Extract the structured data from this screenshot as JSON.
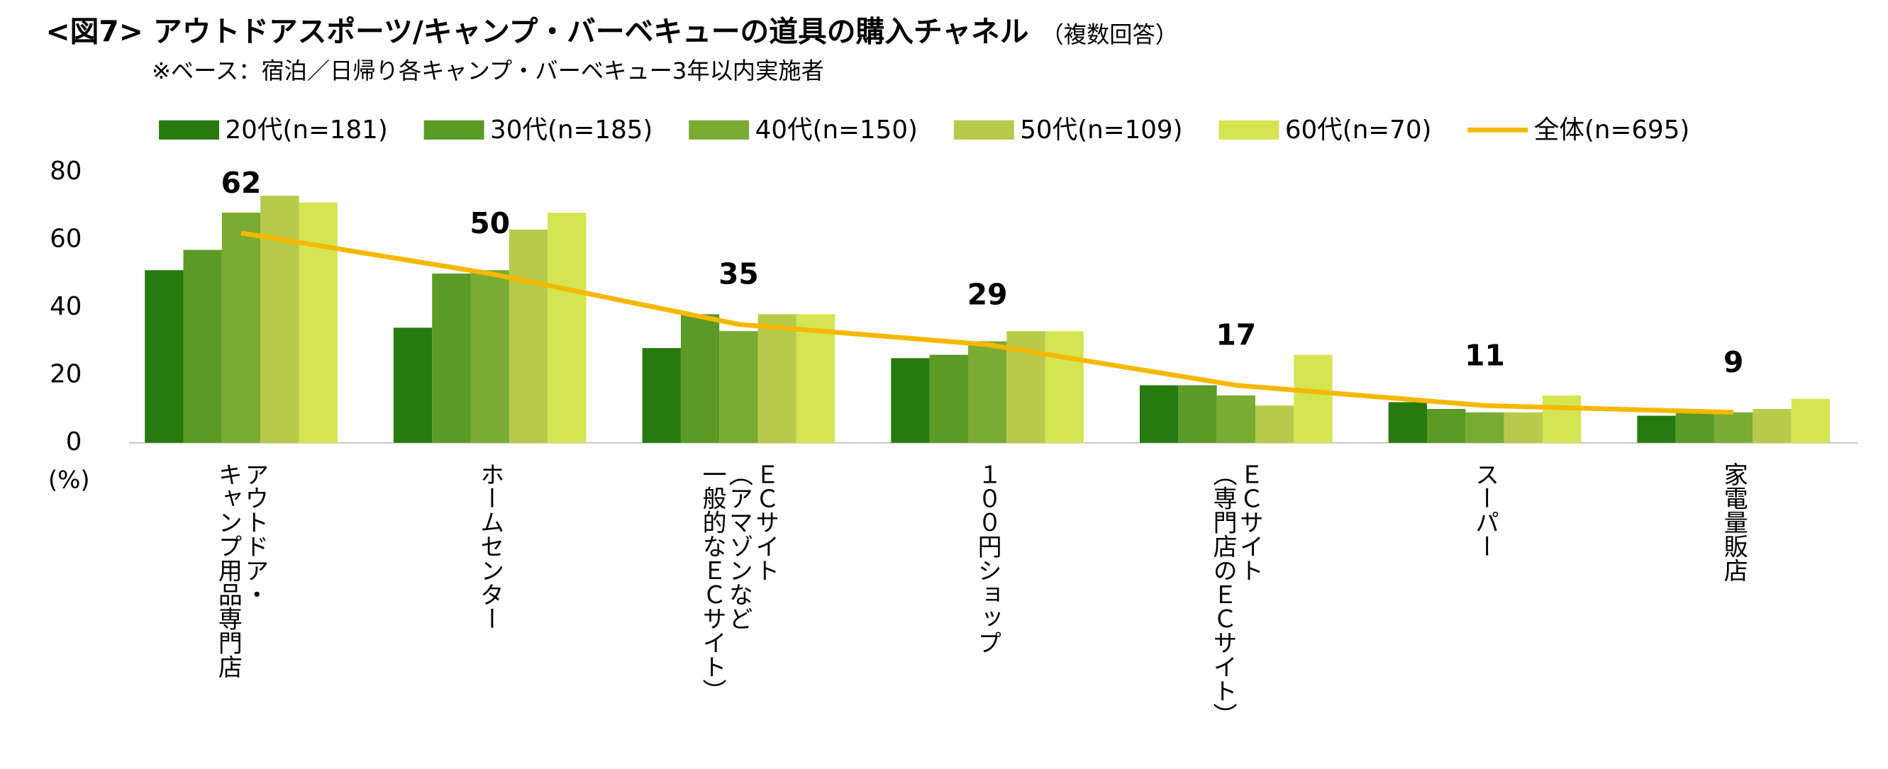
{
  "chart_data": {
    "type": "bar",
    "title": "<図7> アウトドアスポーツ/キャンプ・バーベキューの道具の購入チャネル",
    "title_note": "（複数回答）",
    "subtitle": "※ベース：宿泊／日帰り各キャンプ・バーベキュー3年以内実施者",
    "y_unit": "(%)",
    "categories": [
      [
        "アウトドア・",
        "キャンプ用品専門店"
      ],
      [
        "ホームセンター"
      ],
      [
        "ＥＣサイト",
        "（アマゾンなど",
        "一般的なＥＣサイト）"
      ],
      [
        "１００円ショップ"
      ],
      [
        "ＥＣサイト",
        "（専門店のＥＣサイト）"
      ],
      [
        "スーパー"
      ],
      [
        "家電量販店"
      ]
    ],
    "series": [
      {
        "name": "20代(n=181)",
        "color": "#267a0e",
        "values": [
          51,
          34,
          28,
          25,
          17,
          12,
          8
        ]
      },
      {
        "name": "30代(n=185)",
        "color": "#5a9a25",
        "values": [
          57,
          50,
          38,
          26,
          17,
          10,
          9
        ]
      },
      {
        "name": "40代(n=150)",
        "color": "#7aab33",
        "values": [
          68,
          51,
          33,
          30,
          14,
          9,
          9
        ]
      },
      {
        "name": "50代(n=109)",
        "color": "#b8ca4a",
        "values": [
          73,
          63,
          38,
          33,
          11,
          9,
          10
        ]
      },
      {
        "name": "60代(n=70)",
        "color": "#d5e552",
        "values": [
          71,
          68,
          38,
          33,
          26,
          14,
          13
        ]
      },
      {
        "name": "全体(n=695)",
        "color": "#f5b800",
        "type": "line",
        "values": [
          62,
          50,
          35,
          29,
          17,
          11,
          9
        ]
      }
    ],
    "ylim": [
      0,
      80
    ],
    "yticks": [
      0,
      20,
      40,
      60,
      80
    ],
    "grid": false,
    "legend": "top"
  }
}
